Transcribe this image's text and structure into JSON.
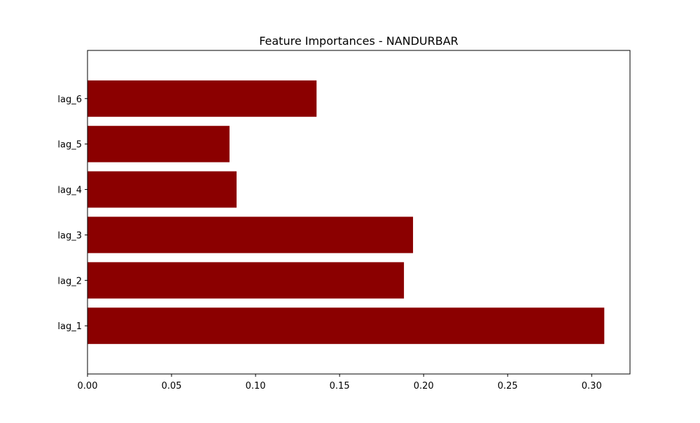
{
  "chart_data": {
    "type": "bar",
    "orientation": "horizontal",
    "title": "Feature Importances - NANDURBAR",
    "xlabel": "",
    "ylabel": "",
    "categories": [
      "lag_1",
      "lag_2",
      "lag_3",
      "lag_4",
      "lag_5",
      "lag_6"
    ],
    "values": [
      0.3075,
      0.1883,
      0.1937,
      0.0887,
      0.0845,
      0.1363
    ],
    "xlim": [
      0.0,
      0.3228
    ],
    "xticks": [
      0.0,
      0.05,
      0.1,
      0.15,
      0.2,
      0.25,
      0.3
    ],
    "xtick_labels": [
      "0.00",
      "0.05",
      "0.10",
      "0.15",
      "0.20",
      "0.25",
      "0.30"
    ],
    "bar_color": "#8b0000",
    "grid": false,
    "legend": null
  }
}
